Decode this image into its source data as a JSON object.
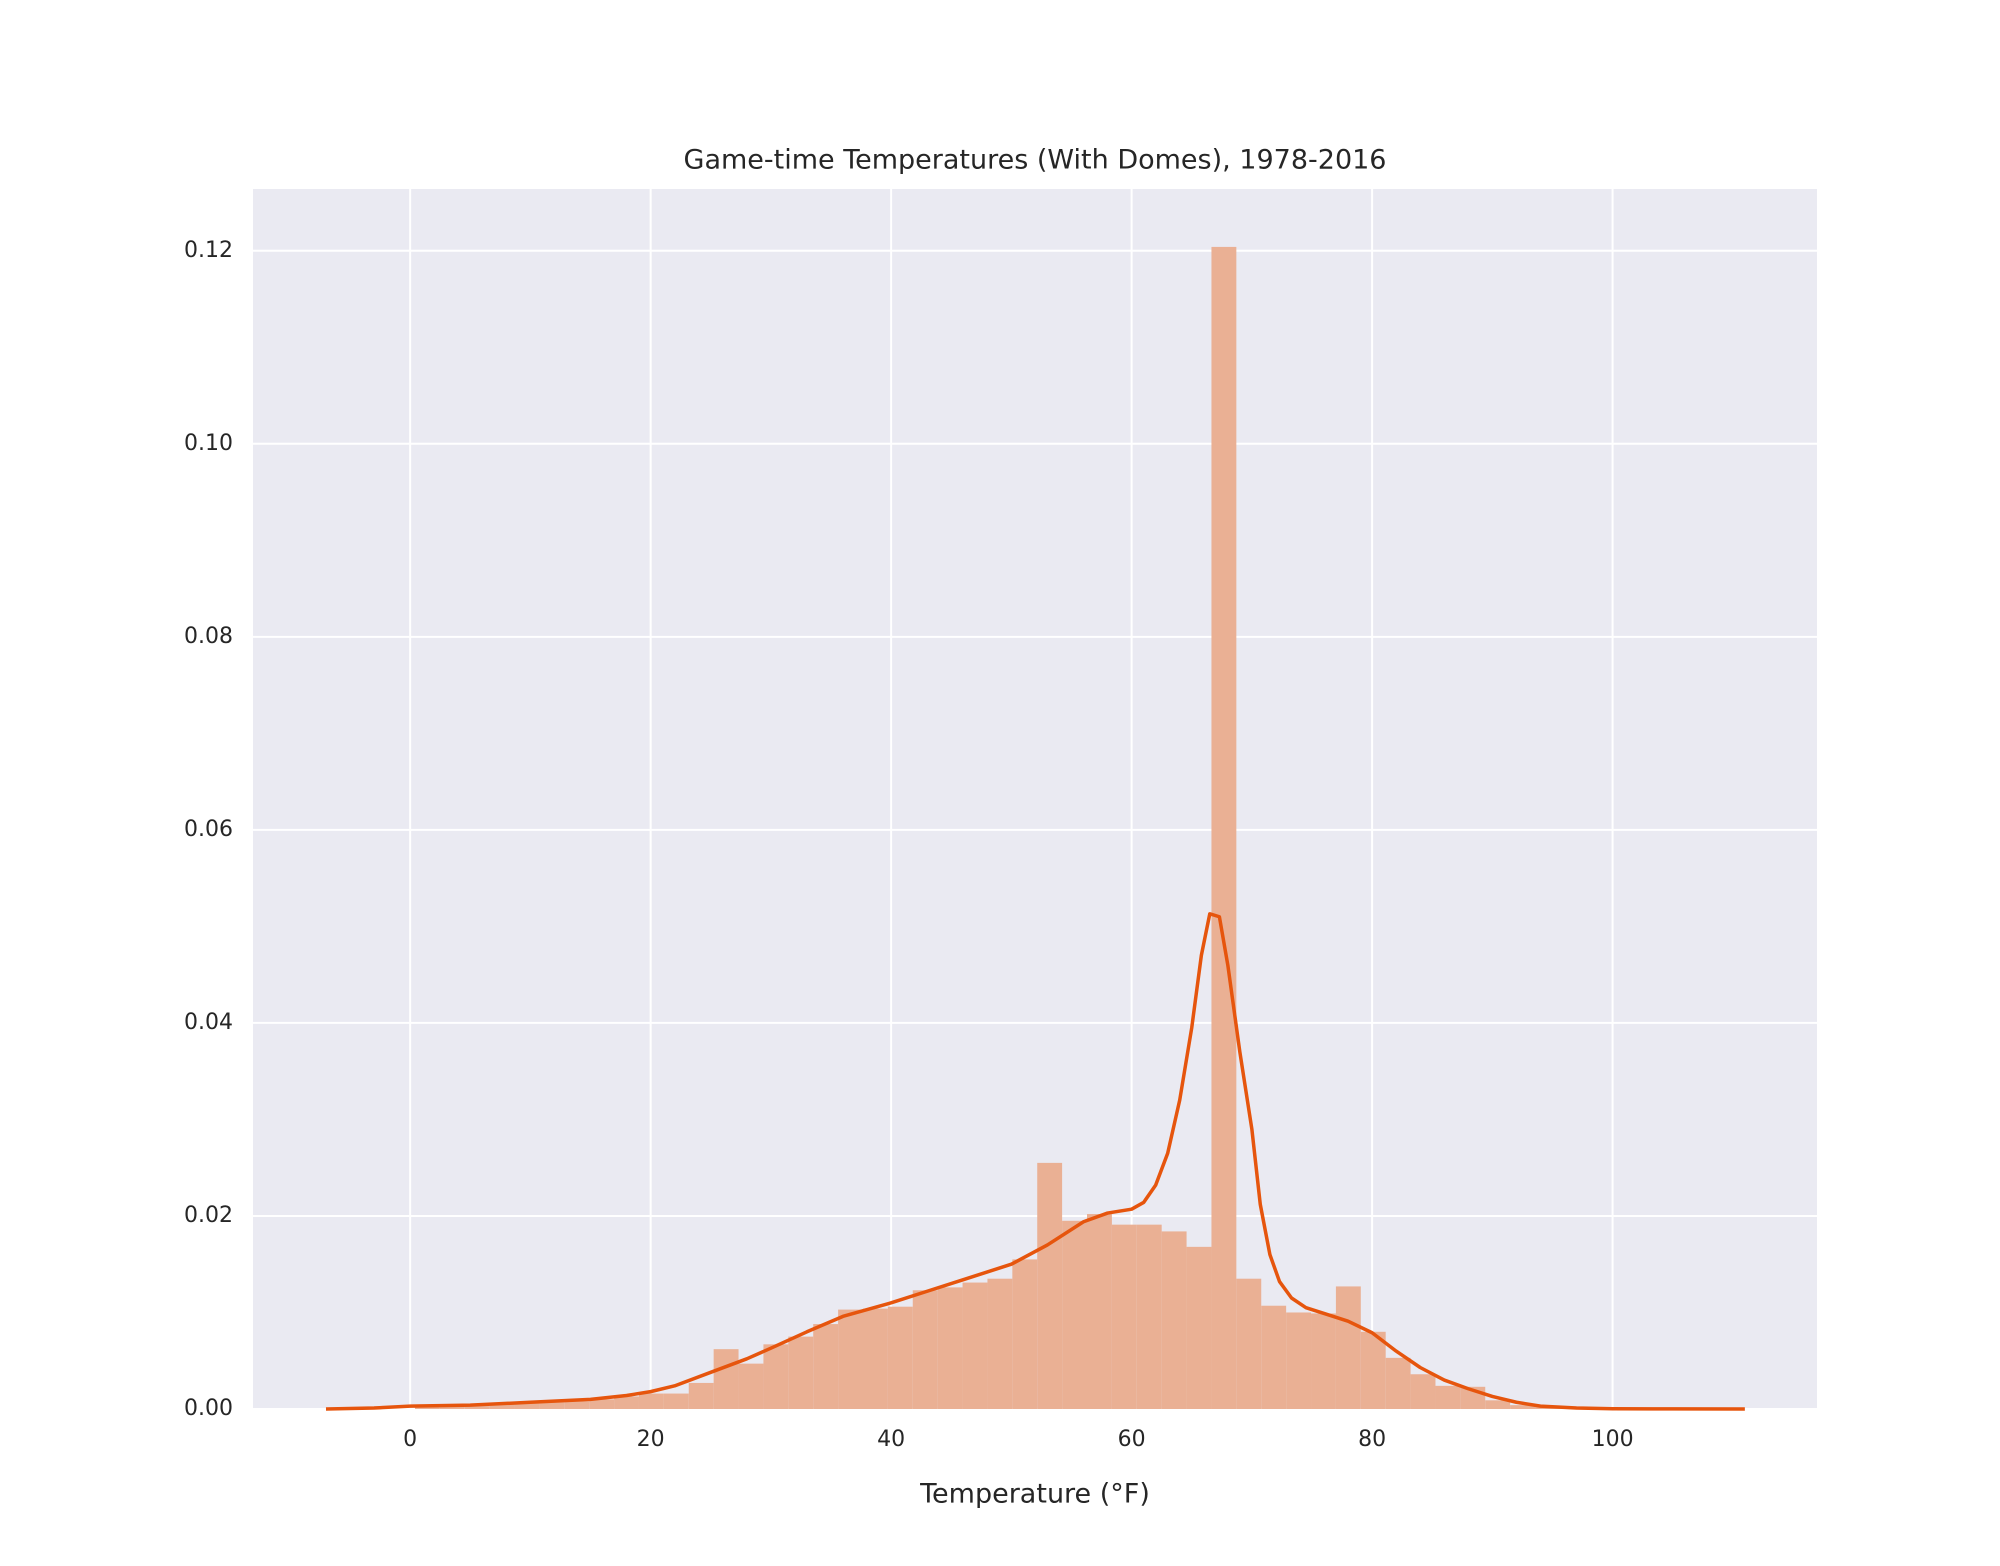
{
  "chart_data": {
    "type": "histogram",
    "title": "Game-time Temperatures (With Domes), 1978-2016",
    "xlabel": "Temperature (°F)",
    "bins": [
      0.4,
      2.47,
      4.54,
      6.61,
      8.68,
      10.75,
      12.82,
      14.89,
      16.96,
      19.03,
      21.1,
      23.17,
      25.24,
      27.31,
      29.38,
      31.45,
      33.52,
      35.59,
      37.66,
      39.73,
      41.8,
      43.87,
      45.94,
      48.01,
      50.08,
      52.15,
      54.22,
      56.29,
      58.36,
      60.43,
      62.5,
      64.57,
      66.64,
      68.71,
      70.78,
      72.85,
      74.92,
      76.99,
      79.06,
      81.13,
      83.2,
      85.27,
      87.34,
      89.41,
      91.48,
      93.55,
      95.62,
      97.69
    ],
    "counts": [
      0.0003,
      0.0003,
      0.0003,
      0.0005,
      0.0006,
      0.0007,
      0.0008,
      0.001,
      0.0013,
      0.0016,
      0.0016,
      0.0027,
      0.0062,
      0.0047,
      0.0067,
      0.0075,
      0.0088,
      0.0103,
      0.0104,
      0.0106,
      0.0123,
      0.0126,
      0.0131,
      0.0135,
      0.0155,
      0.0255,
      0.0195,
      0.0202,
      0.0191,
      0.0191,
      0.0184,
      0.0168,
      0.1204,
      0.0135,
      0.0107,
      0.01,
      0.0099,
      0.0127,
      0.008,
      0.0053,
      0.0036,
      0.0024,
      0.0023,
      0.0009,
      0.0004,
      0.0002,
      0.0001
    ],
    "color": "#eab094",
    "kde": {
      "color": "#e6550d",
      "x": [
        -7,
        -3,
        0,
        5,
        10,
        15,
        18,
        20,
        22,
        25,
        28,
        30,
        33,
        36,
        40,
        43,
        46,
        50,
        53,
        56,
        58,
        60,
        61,
        62,
        63,
        64,
        65,
        65.8,
        66.5,
        67.3,
        68,
        69,
        70,
        70.7,
        71.5,
        72.3,
        73.3,
        74.5,
        76,
        78,
        80,
        82,
        84,
        86,
        88,
        90,
        92,
        94,
        97,
        100,
        105,
        111
      ],
      "values": [
        0,
        0.0001,
        0.0003,
        0.0004,
        0.0007,
        0.001,
        0.0014,
        0.0018,
        0.0024,
        0.0038,
        0.0052,
        0.0063,
        0.008,
        0.0096,
        0.011,
        0.0122,
        0.0134,
        0.015,
        0.017,
        0.0194,
        0.0203,
        0.0207,
        0.0214,
        0.0232,
        0.0265,
        0.032,
        0.0395,
        0.047,
        0.0513,
        0.051,
        0.046,
        0.037,
        0.029,
        0.0212,
        0.016,
        0.0132,
        0.0115,
        0.0105,
        0.0099,
        0.0091,
        0.0079,
        0.006,
        0.0043,
        0.003,
        0.0021,
        0.0013,
        0.0007,
        0.0003,
        0.0001,
        3e-05,
        1e-05,
        0
      ]
    },
    "xlim": [
      -13.07,
      117
    ],
    "ylim": [
      0,
      0.1264
    ],
    "xticks": [
      0,
      20,
      40,
      60,
      80,
      100
    ],
    "yticks": [
      {
        "value": 0,
        "label": "0.00"
      },
      0.02,
      0.04,
      0.06,
      0.08,
      {
        "value": 0.1,
        "label": "0.10"
      },
      0.12
    ],
    "grid": true
  }
}
